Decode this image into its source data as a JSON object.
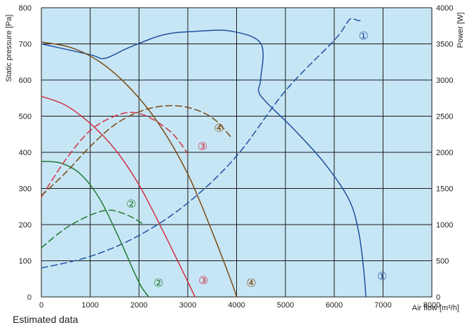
{
  "note": "Estimated data",
  "chart_data": {
    "type": "line",
    "title": "",
    "xlabel": "Air flow [m³/h]",
    "ylabel": "Static pressure [Pa]",
    "y2label": "Power [W]",
    "xlim": [
      0,
      8000
    ],
    "ylim": [
      0,
      800
    ],
    "y2lim": [
      0,
      4000
    ],
    "grid": true,
    "legend": "none",
    "x_ticks": [
      "0",
      "1000",
      "2000",
      "3000",
      "4000",
      "5000",
      "6000",
      "7000",
      "8000"
    ],
    "y_ticks": [
      "0",
      "100",
      "200",
      "300",
      "400",
      "500",
      "600",
      "700",
      "800"
    ],
    "y2_ticks": [
      "0",
      "500",
      "1000",
      "1500",
      "2000",
      "2500",
      "3000",
      "3500",
      "4000"
    ],
    "colors": {
      "plot_bg": "#c7e6f5",
      "grid": "#1a1a1a",
      "blue": "#1f4fa0",
      "green": "#1f7a30",
      "red": "#d03040",
      "brown": "#7a4a10"
    },
    "series": [
      {
        "id": "1",
        "kind": "pressure",
        "axis": "left",
        "dash": false,
        "color": "#1f4fa0",
        "x": [
          0,
          1000,
          1300,
          1800,
          2500,
          3200,
          3900,
          4500,
          4490,
          4450,
          4600,
          5200,
          5800,
          6300,
          6500,
          6600,
          6650
        ],
        "y": [
          700,
          670,
          660,
          690,
          725,
          735,
          735,
          700,
          600,
          570,
          540,
          460,
          370,
          270,
          180,
          80,
          0
        ]
      },
      {
        "id": "1",
        "kind": "power",
        "axis": "right",
        "dash": true,
        "color": "#1f4fa0",
        "x": [
          0,
          1000,
          2000,
          3000,
          4000,
          5000,
          6000,
          6250,
          6350,
          6500,
          6550
        ],
        "y": [
          400,
          560,
          850,
          1300,
          1950,
          2850,
          3550,
          3780,
          3850,
          3820,
          3830
        ]
      },
      {
        "id": "2",
        "kind": "pressure",
        "axis": "left",
        "dash": false,
        "color": "#1f7a30",
        "x": [
          0,
          400,
          800,
          1200,
          1600,
          2000,
          2200
        ],
        "y": [
          375,
          370,
          340,
          270,
          160,
          40,
          0
        ]
      },
      {
        "id": "2",
        "kind": "power",
        "axis": "right",
        "dash": true,
        "color": "#1f7a30",
        "x": [
          0,
          500,
          1000,
          1400,
          1800,
          2100
        ],
        "y": [
          680,
          950,
          1130,
          1200,
          1120,
          1000
        ]
      },
      {
        "id": "3",
        "kind": "pressure",
        "axis": "left",
        "dash": false,
        "color": "#d03040",
        "x": [
          0,
          500,
          1000,
          1500,
          2000,
          2500,
          2900,
          3150
        ],
        "y": [
          555,
          530,
          480,
          410,
          310,
          180,
          70,
          0
        ]
      },
      {
        "id": "3",
        "kind": "power",
        "axis": "right",
        "dash": true,
        "color": "#d03040",
        "x": [
          0,
          500,
          1000,
          1500,
          1900,
          2300,
          2700,
          3000
        ],
        "y": [
          1380,
          1900,
          2300,
          2500,
          2550,
          2450,
          2250,
          1980
        ]
      },
      {
        "id": "4",
        "kind": "pressure",
        "axis": "left",
        "dash": false,
        "color": "#7a4a10",
        "x": [
          0,
          600,
          1200,
          1800,
          2400,
          3000,
          3500,
          3900,
          4000
        ],
        "y": [
          705,
          690,
          650,
          580,
          480,
          340,
          180,
          40,
          0
        ]
      },
      {
        "id": "4",
        "kind": "power",
        "axis": "right",
        "dash": true,
        "color": "#7a4a10",
        "x": [
          0,
          500,
          1000,
          1500,
          2000,
          2500,
          3000,
          3500,
          3900
        ],
        "y": [
          1400,
          1720,
          2080,
          2380,
          2560,
          2640,
          2620,
          2480,
          2200
        ]
      }
    ],
    "markers": [
      {
        "label": "1",
        "color": "#1f4fa0",
        "x": 6600,
        "y": 720
      },
      {
        "label": "1",
        "color": "#1f4fa0",
        "x": 6980,
        "y": 55
      },
      {
        "label": "2",
        "color": "#1f7a30",
        "x": 1840,
        "y": 255
      },
      {
        "label": "2",
        "color": "#1f7a30",
        "x": 2400,
        "y": 37
      },
      {
        "label": "3",
        "color": "#d03040",
        "x": 3300,
        "y": 415
      },
      {
        "label": "3",
        "color": "#d03040",
        "x": 3320,
        "y": 44
      },
      {
        "label": "4",
        "color": "#7a4a10",
        "x": 3640,
        "y": 465
      },
      {
        "label": "4",
        "color": "#7a4a10",
        "x": 4300,
        "y": 37
      }
    ]
  }
}
